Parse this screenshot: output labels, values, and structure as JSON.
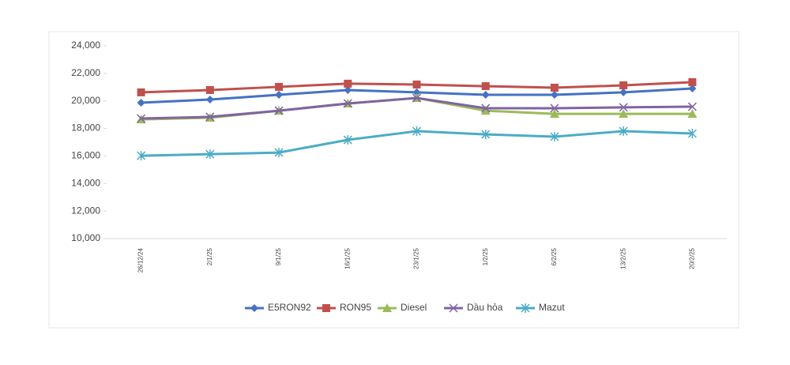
{
  "chart_data": {
    "type": "line",
    "categories": [
      "26/12/24",
      "2/1/25",
      "9/1/25",
      "16/1/25",
      "23/1/25",
      "1/2/25",
      "6/2/25",
      "13/2/25",
      "20/2/25"
    ],
    "series": [
      {
        "name": "E5RON92",
        "color": "#4472c4",
        "marker": "diamond",
        "values": [
          19870,
          20100,
          20440,
          20790,
          20620,
          20440,
          20440,
          20620,
          20900
        ]
      },
      {
        "name": "RON95",
        "color": "#c0504d",
        "marker": "square",
        "values": [
          20620,
          20790,
          21020,
          21250,
          21190,
          21070,
          20960,
          21130,
          21360
        ]
      },
      {
        "name": "Diesel",
        "color": "#9bbb59",
        "marker": "triangle",
        "values": [
          18660,
          18780,
          19290,
          19810,
          20210,
          19290,
          19060,
          19060,
          19060
        ]
      },
      {
        "name": "Dầu hỏa",
        "color": "#8064a2",
        "marker": "x",
        "values": [
          18720,
          18840,
          19290,
          19810,
          20210,
          19470,
          19470,
          19530,
          19580
        ]
      },
      {
        "name": "Mazut",
        "color": "#4bacc6",
        "marker": "star",
        "values": [
          16020,
          16130,
          16250,
          17170,
          17800,
          17570,
          17400,
          17800,
          17630
        ]
      }
    ],
    "ylim": [
      10000,
      24000
    ],
    "yticks": [
      {
        "value": 10000,
        "label": "10,000"
      },
      {
        "value": 12000,
        "label": "12,000"
      },
      {
        "value": 14000,
        "label": "14,000"
      },
      {
        "value": 16000,
        "label": "16,000"
      },
      {
        "value": 18000,
        "label": "18,000"
      },
      {
        "value": 20000,
        "label": "20,000"
      },
      {
        "value": 22000,
        "label": "22,000"
      },
      {
        "value": 24000,
        "label": "24,000"
      }
    ],
    "legend": "bottom"
  }
}
